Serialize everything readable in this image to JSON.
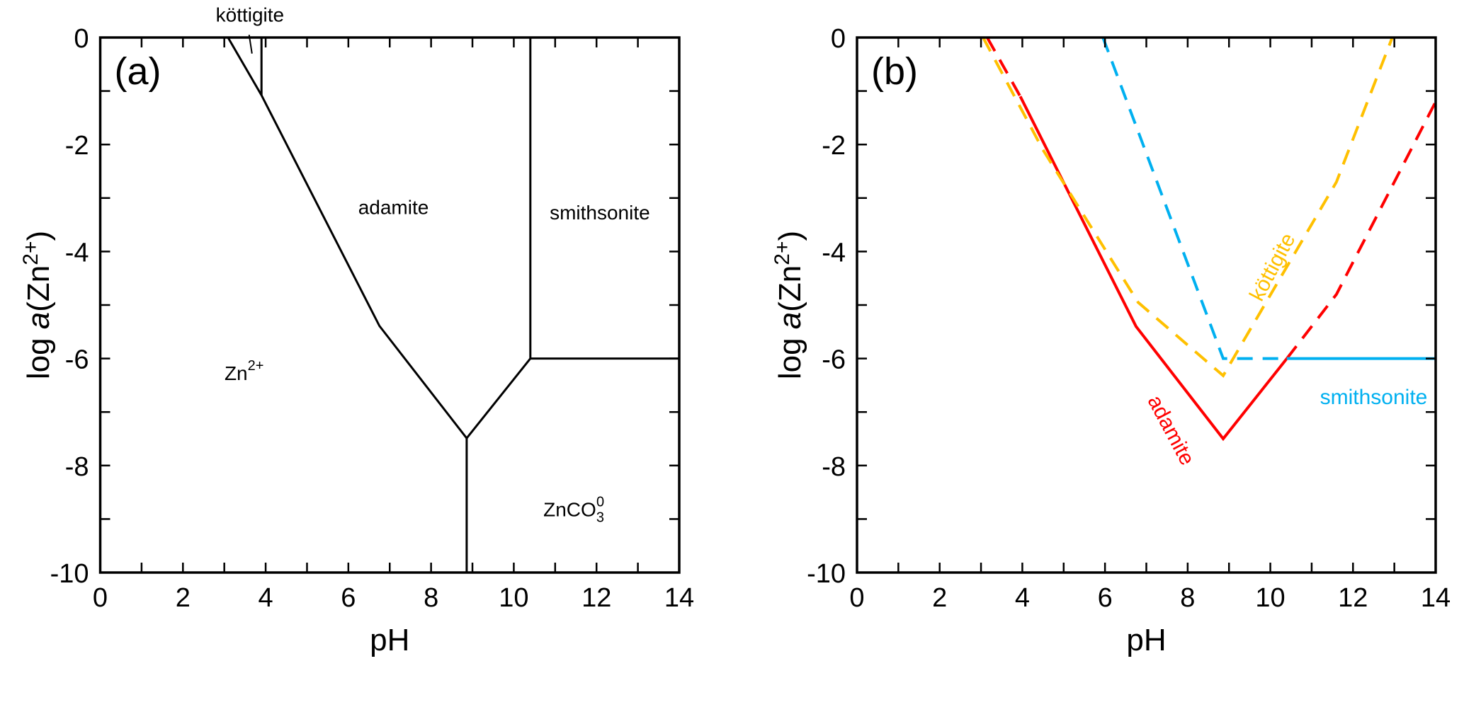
{
  "chart_data": [
    {
      "type": "line",
      "panel_label": "(a)",
      "xlabel": "pH",
      "ylabel_prefix": "log ",
      "ylabel_italic": "a",
      "ylabel_main": "(Zn",
      "ylabel_sup": "2+",
      "ylabel_end": ")",
      "xlim": [
        0,
        14
      ],
      "ylim": [
        -10,
        0
      ],
      "xticks": [
        "0",
        "2",
        "4",
        "6",
        "8",
        "10",
        "12",
        "14"
      ],
      "yticks": [
        "0",
        "-2",
        "-4",
        "-6",
        "-8",
        "-10"
      ],
      "series": [
        {
          "name": "Zn2+/adamite boundary",
          "color": "#000000",
          "style": "solid",
          "points": [
            [
              3.09,
              0
            ],
            [
              3.9,
              -1.08
            ],
            [
              6.75,
              -5.39
            ],
            [
              8.86,
              -7.49
            ]
          ]
        },
        {
          "name": "köttigite/adamite boundary",
          "color": "#000000",
          "style": "solid",
          "points": [
            [
              3.9,
              0
            ],
            [
              3.9,
              -1.08
            ]
          ]
        },
        {
          "name": "adamite/ZnCO3 boundary",
          "color": "#000000",
          "style": "solid",
          "points": [
            [
              8.86,
              -7.49
            ],
            [
              10.4,
              -6.0
            ]
          ]
        },
        {
          "name": "adamite/smithsonite boundary",
          "color": "#000000",
          "style": "solid",
          "points": [
            [
              10.4,
              0
            ],
            [
              10.4,
              -6.0
            ]
          ]
        },
        {
          "name": "smithsonite/ZnCO3 boundary",
          "color": "#000000",
          "style": "solid",
          "points": [
            [
              10.4,
              -6.0
            ],
            [
              14,
              -6.0
            ]
          ]
        },
        {
          "name": "Zn2+/ZnCO3 boundary",
          "color": "#000000",
          "style": "solid",
          "points": [
            [
              8.86,
              -7.49
            ],
            [
              8.86,
              -10
            ]
          ]
        },
        {
          "name": "köttigite leader",
          "color": "#000000",
          "style": "thin",
          "points": [
            [
              3.6,
              0.05
            ],
            [
              3.67,
              -0.3
            ]
          ]
        }
      ],
      "annotations": [
        {
          "text": "köttigite",
          "x": 3.62,
          "y": 0.3,
          "color": "#000000",
          "rotate": 0
        },
        {
          "text": "adamite",
          "x": 7.09,
          "y": -3.3,
          "color": "#000000",
          "rotate": 0
        },
        {
          "text": "smithsonite",
          "x": 12.08,
          "y": -3.4,
          "color": "#000000",
          "rotate": 0
        },
        {
          "text": "Zn",
          "sup": "2+",
          "x": 3.48,
          "y": -6.4,
          "color": "#000000",
          "rotate": 0
        },
        {
          "text": "ZnCO",
          "sub": "3",
          "sup": "0",
          "x": 11.45,
          "y": -8.95,
          "color": "#000000",
          "rotate": 0
        }
      ]
    },
    {
      "type": "line",
      "panel_label": "(b)",
      "xlabel": "pH",
      "ylabel_prefix": "log ",
      "ylabel_italic": "a",
      "ylabel_main": "(Zn",
      "ylabel_sup": "2+",
      "ylabel_end": ")",
      "xlim": [
        0,
        14
      ],
      "ylim": [
        -10,
        0
      ],
      "xticks": [
        "0",
        "2",
        "4",
        "6",
        "8",
        "10",
        "12",
        "14"
      ],
      "yticks": [
        "0",
        "-2",
        "-4",
        "-6",
        "-8",
        "-10"
      ],
      "series": [
        {
          "name": "adamite (metastable)",
          "color": "#ff0000",
          "style": "dashed",
          "points": [
            [
              3.15,
              0
            ],
            [
              3.95,
              -1.1
            ]
          ]
        },
        {
          "name": "adamite",
          "color": "#ff0000",
          "style": "solid",
          "points": [
            [
              3.95,
              -1.1
            ],
            [
              6.75,
              -5.4
            ],
            [
              8.86,
              -7.5
            ],
            [
              10.4,
              -6.0
            ]
          ]
        },
        {
          "name": "adamite (metastable high pH)",
          "color": "#ff0000",
          "style": "dashed",
          "points": [
            [
              10.4,
              -6.0
            ],
            [
              11.6,
              -4.8
            ],
            [
              14,
              -1.2
            ]
          ]
        },
        {
          "name": "köttigite",
          "color": "#ffc000",
          "style": "dashed",
          "points": [
            [
              3.05,
              0
            ],
            [
              4.5,
              -2.1
            ],
            [
              6.8,
              -4.95
            ],
            [
              8.86,
              -6.32
            ],
            [
              11.6,
              -2.7
            ],
            [
              12.95,
              0
            ]
          ]
        },
        {
          "name": "smithsonite (metastable)",
          "color": "#00b0f0",
          "style": "dashed",
          "points": [
            [
              5.95,
              0
            ],
            [
              8.86,
              -6.0
            ],
            [
              10.4,
              -6.0
            ]
          ]
        },
        {
          "name": "smithsonite",
          "color": "#00b0f0",
          "style": "solid",
          "points": [
            [
              10.4,
              -6.0
            ],
            [
              14,
              -6.0
            ]
          ]
        }
      ],
      "annotations": [
        {
          "text": "köttigite",
          "x": 10.2,
          "y": -4.35,
          "color": "#ffc000",
          "rotate": -62
        },
        {
          "text": "adamite",
          "x": 7.45,
          "y": -7.4,
          "color": "#ff0000",
          "rotate": 62
        },
        {
          "text": "smithsonite",
          "x": 12.5,
          "y": -6.85,
          "color": "#00b0f0",
          "rotate": 0
        }
      ]
    }
  ]
}
